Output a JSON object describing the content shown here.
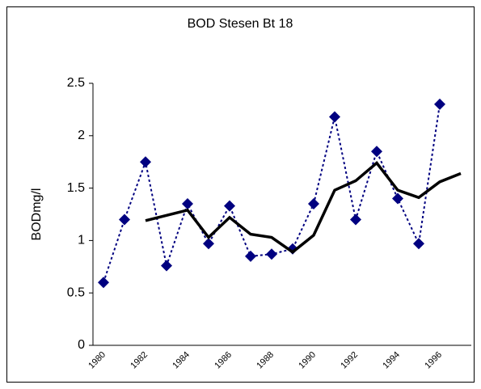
{
  "chart_data": {
    "type": "line",
    "title": "BOD Stesen Bt 18",
    "y_label": "BODmg/l",
    "categories": [
      "1980",
      null,
      "1982",
      null,
      "1984",
      null,
      "1986",
      null,
      "1988",
      null,
      "1990",
      null,
      "1992",
      null,
      "1994",
      null,
      "1996",
      null
    ],
    "series": [
      {
        "color": "#000080",
        "style": "dotted-markers",
        "values": [
          0.6,
          1.2,
          1.75,
          0.76,
          1.35,
          0.97,
          1.33,
          0.85,
          0.87,
          0.92,
          1.35,
          2.18,
          1.2,
          1.85,
          1.4,
          0.97,
          2.3,
          null
        ]
      },
      {
        "color": "#000000",
        "style": "solid",
        "values": [
          null,
          null,
          1.19,
          1.24,
          1.29,
          1.03,
          1.22,
          1.06,
          1.03,
          0.89,
          1.05,
          1.48,
          1.57,
          1.74,
          1.48,
          1.41,
          1.56,
          1.64
        ]
      }
    ],
    "ylim": [
      0,
      2.5
    ],
    "yticks": [
      0,
      0.5,
      1,
      1.5,
      2,
      2.5
    ],
    "grid": false
  }
}
